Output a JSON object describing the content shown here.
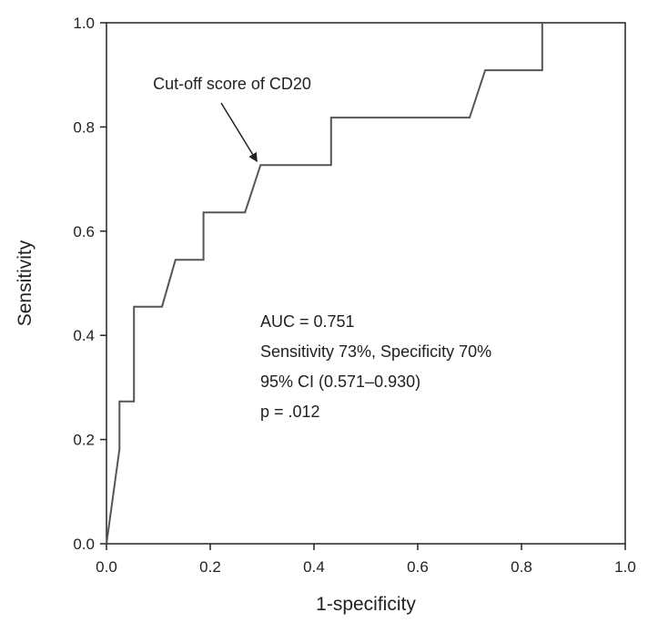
{
  "chart_data": {
    "type": "line",
    "title": "",
    "xlabel": "1-specificity",
    "ylabel": "Sensitivity",
    "xlim": [
      0,
      1
    ],
    "ylim": [
      0,
      1
    ],
    "xticks": [
      "0.0",
      "0.2",
      "0.4",
      "0.6",
      "0.8",
      "1.0"
    ],
    "yticks": [
      "0.0",
      "0.2",
      "0.4",
      "0.6",
      "0.8",
      "1.0"
    ],
    "grid": false,
    "legend": "none",
    "series": [
      {
        "x": [
          0.0,
          0.025,
          0.025,
          0.053,
          0.053,
          0.107,
          0.133,
          0.187,
          0.187,
          0.267,
          0.297,
          0.433,
          0.433,
          0.7,
          0.73,
          0.84,
          0.84
        ],
        "y": [
          0.0,
          0.182,
          0.273,
          0.273,
          0.455,
          0.455,
          0.545,
          0.545,
          0.636,
          0.636,
          0.727,
          0.727,
          0.818,
          0.818,
          0.909,
          0.909,
          1.0
        ]
      }
    ],
    "annotations": {
      "cutoff_label": "Cut-off score of CD20",
      "cutoff_point": {
        "x": 0.297,
        "y": 0.727
      },
      "stats": [
        "AUC = 0.751",
        "Sensitivity 73%, Specificity 70%",
        "95% CI (0.571–0.930)",
        "p = .012"
      ]
    },
    "colors": {
      "line": "#555555",
      "axis": "#222222"
    }
  }
}
